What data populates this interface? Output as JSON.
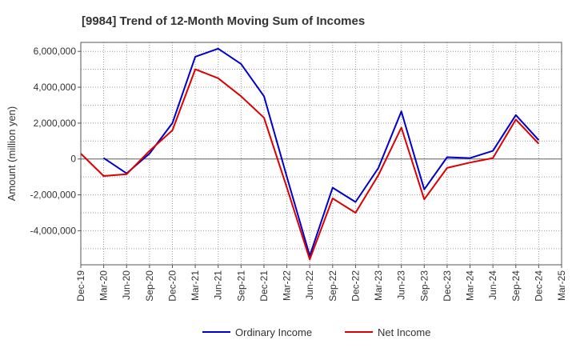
{
  "chart_data": {
    "type": "line",
    "title": "[9984]  Trend of 12-Month Moving Sum of Incomes",
    "xlabel": "",
    "ylabel": "Amount (million yen)",
    "ylim": [
      -5900000,
      6500000
    ],
    "y_ticks": [
      6000000,
      4000000,
      2000000,
      0,
      -2000000,
      -4000000
    ],
    "y_tick_labels": [
      "6,000,000",
      "4,000,000",
      "2,000,000",
      "0",
      "-2,000,000",
      "-4,000,000"
    ],
    "categories": [
      "Dec-19",
      "Mar-20",
      "Jun-20",
      "Sep-20",
      "Dec-20",
      "Mar-21",
      "Jun-21",
      "Sep-21",
      "Dec-21",
      "Mar-22",
      "Jun-22",
      "Sep-22",
      "Dec-22",
      "Mar-23",
      "Jun-23",
      "Sep-23",
      "Dec-23",
      "Mar-24",
      "Jun-24",
      "Sep-24",
      "Dec-24",
      "Mar-25"
    ],
    "grid": true,
    "legend_position": "bottom",
    "series": [
      {
        "name": "Ordinary Income",
        "color": "#0000cc",
        "values": [
          null,
          50000,
          -800000,
          300000,
          2000000,
          5700000,
          6150000,
          5300000,
          3500000,
          -1000000,
          -5400000,
          -1600000,
          -2400000,
          -500000,
          2650000,
          -1700000,
          100000,
          50000,
          450000,
          2450000,
          1050000,
          null
        ]
      },
      {
        "name": "Net Income",
        "color": "#dd0000",
        "values": [
          300000,
          -950000,
          -850000,
          450000,
          1600000,
          5000000,
          4500000,
          3500000,
          2300000,
          -1600000,
          -5600000,
          -2200000,
          -3000000,
          -900000,
          1750000,
          -2250000,
          -500000,
          -200000,
          50000,
          2200000,
          850000,
          null
        ]
      }
    ]
  }
}
